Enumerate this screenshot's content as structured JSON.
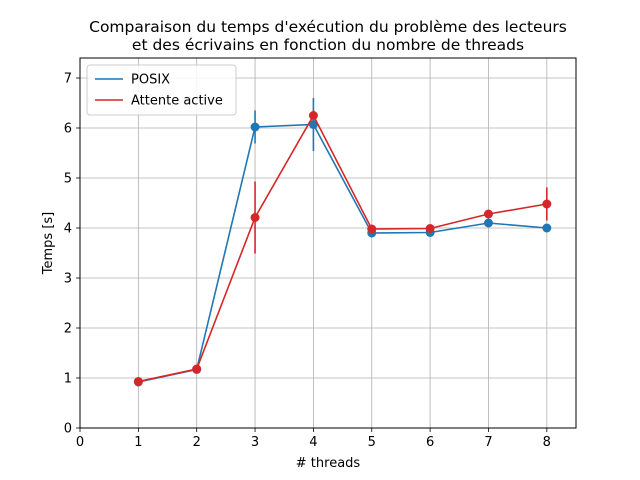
{
  "chart_data": {
    "type": "line",
    "title": [
      "Comparaison du temps d'exécution du problème des lecteurs",
      "et des écrivains en fonction du nombre de threads"
    ],
    "xlabel": "# threads",
    "ylabel": "Temps [s]",
    "xlim": [
      0,
      8.5
    ],
    "ylim": [
      0,
      7.4
    ],
    "xticks": [
      0,
      1,
      2,
      3,
      4,
      5,
      6,
      7,
      8
    ],
    "yticks": [
      0,
      1,
      2,
      3,
      4,
      5,
      6,
      7
    ],
    "grid": true,
    "legend_position": "top-left",
    "x": [
      1,
      2,
      3,
      4,
      5,
      6,
      7,
      8
    ],
    "series": [
      {
        "name": "POSIX",
        "color": "#1f77b4",
        "values": [
          0.92,
          1.17,
          6.02,
          6.07,
          3.9,
          3.91,
          4.1,
          4.0
        ],
        "errors": [
          0.02,
          0.03,
          0.33,
          0.53,
          0.05,
          0.05,
          0.05,
          0.05
        ]
      },
      {
        "name": "Attente active",
        "color": "#d62728",
        "values": [
          0.93,
          1.18,
          4.21,
          6.25,
          3.98,
          3.99,
          4.28,
          4.48
        ],
        "errors": [
          0.02,
          0.03,
          0.72,
          0.1,
          0.04,
          0.04,
          0.05,
          0.33
        ]
      }
    ]
  }
}
